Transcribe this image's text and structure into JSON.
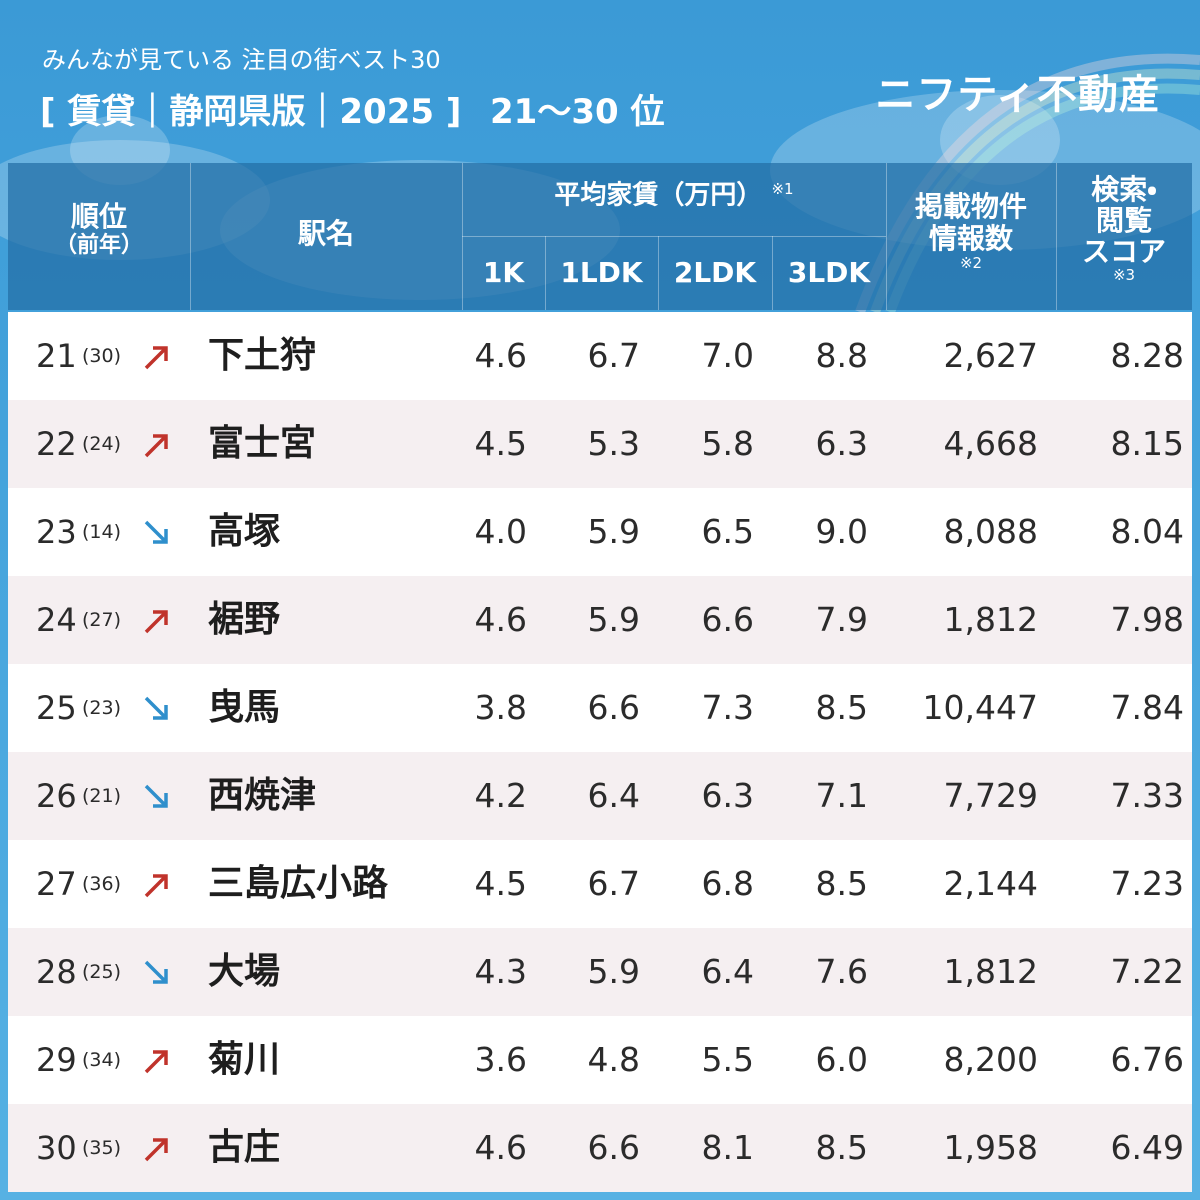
{
  "header": {
    "subtitle": "みんなが見ている 注目の街ベスト30",
    "title": "[ 賃貸｜静岡県版｜2025 ]",
    "range": "21～30 位",
    "brand": "ニフティ不動産"
  },
  "table": {
    "columns": {
      "rank": [
        "順位",
        "（前年）"
      ],
      "station": "駅名",
      "rent": {
        "label": "平均家賃（万円）",
        "note": "※1",
        "types": [
          "1K",
          "1LDK",
          "2LDK",
          "3LDK"
        ]
      },
      "listings": {
        "lines": [
          "掲載物件",
          "情報数"
        ],
        "note": "※2"
      },
      "score": {
        "lines": [
          "検索・",
          "閲覧",
          "スコア"
        ],
        "note": "※3"
      }
    },
    "rows": [
      {
        "rank": "21",
        "prev": "(30)",
        "trend": "up",
        "station": "下土狩",
        "rent": [
          "4.6",
          "6.7",
          "7.0",
          "8.8"
        ],
        "listings": "2,627",
        "score": "8.28"
      },
      {
        "rank": "22",
        "prev": "(24)",
        "trend": "up",
        "station": "富士宮",
        "rent": [
          "4.5",
          "5.3",
          "5.8",
          "6.3"
        ],
        "listings": "4,668",
        "score": "8.15"
      },
      {
        "rank": "23",
        "prev": "(14)",
        "trend": "down",
        "station": "高塚",
        "rent": [
          "4.0",
          "5.9",
          "6.5",
          "9.0"
        ],
        "listings": "8,088",
        "score": "8.04"
      },
      {
        "rank": "24",
        "prev": "(27)",
        "trend": "up",
        "station": "裾野",
        "rent": [
          "4.6",
          "5.9",
          "6.6",
          "7.9"
        ],
        "listings": "1,812",
        "score": "7.98"
      },
      {
        "rank": "25",
        "prev": "(23)",
        "trend": "down",
        "station": "曳馬",
        "rent": [
          "3.8",
          "6.6",
          "7.3",
          "8.5"
        ],
        "listings": "10,447",
        "score": "7.84"
      },
      {
        "rank": "26",
        "prev": "(21)",
        "trend": "down",
        "station": "西焼津",
        "rent": [
          "4.2",
          "6.4",
          "6.3",
          "7.1"
        ],
        "listings": "7,729",
        "score": "7.33"
      },
      {
        "rank": "27",
        "prev": "(36)",
        "trend": "up",
        "station": "三島広小路",
        "rent": [
          "4.5",
          "6.7",
          "6.8",
          "8.5"
        ],
        "listings": "2,144",
        "score": "7.23"
      },
      {
        "rank": "28",
        "prev": "(25)",
        "trend": "down",
        "station": "大場",
        "rent": [
          "4.3",
          "5.9",
          "6.4",
          "7.6"
        ],
        "listings": "1,812",
        "score": "7.22"
      },
      {
        "rank": "29",
        "prev": "(34)",
        "trend": "up",
        "station": "菊川",
        "rent": [
          "3.6",
          "4.8",
          "5.5",
          "6.0"
        ],
        "listings": "8,200",
        "score": "6.76"
      },
      {
        "rank": "30",
        "prev": "(35)",
        "trend": "up",
        "station": "古庄",
        "rent": [
          "4.6",
          "6.6",
          "8.1",
          "8.5"
        ],
        "listings": "1,958",
        "score": "6.49"
      }
    ]
  }
}
